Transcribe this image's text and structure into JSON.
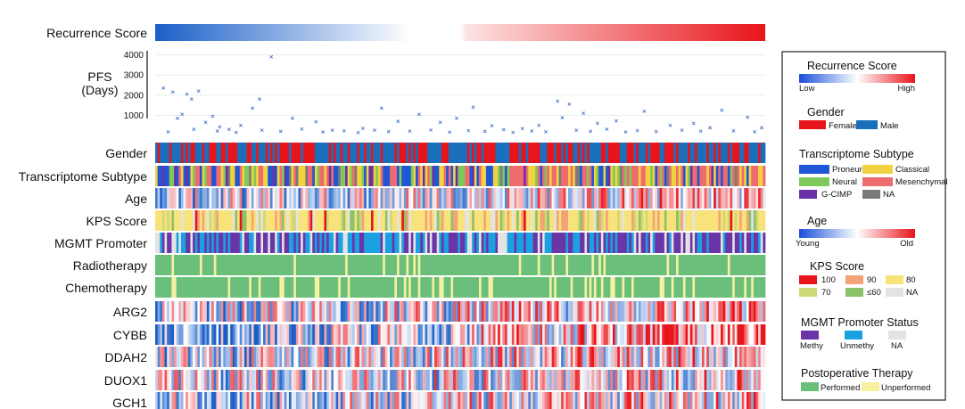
{
  "chart_data": {
    "type": "heatmap",
    "n_samples": 260,
    "top_bar_label": "Recurrence Score",
    "pfs": {
      "label": [
        "PFS",
        "(Days)"
      ],
      "yticks": [
        1000,
        2000,
        3000,
        4000
      ],
      "ylim": [
        0,
        4200
      ],
      "color": "#4a78c8",
      "points": [
        [
          3,
          2350
        ],
        [
          7,
          2150
        ],
        [
          9,
          850
        ],
        [
          11,
          1050
        ],
        [
          13,
          2050
        ],
        [
          15,
          1800
        ],
        [
          18,
          2200
        ],
        [
          21,
          650
        ],
        [
          24,
          950
        ],
        [
          27,
          420
        ],
        [
          31,
          300
        ],
        [
          36,
          500
        ],
        [
          41,
          1350
        ],
        [
          44,
          1800
        ],
        [
          49,
          3900
        ],
        [
          58,
          850
        ],
        [
          68,
          680
        ],
        [
          75,
          260
        ],
        [
          88,
          350
        ],
        [
          96,
          1350
        ],
        [
          103,
          700
        ],
        [
          112,
          1050
        ],
        [
          121,
          650
        ],
        [
          128,
          850
        ],
        [
          135,
          1400
        ],
        [
          143,
          480
        ],
        [
          156,
          340
        ],
        [
          163,
          500
        ],
        [
          171,
          1700
        ],
        [
          173,
          880
        ],
        [
          176,
          1550
        ],
        [
          182,
          1100
        ],
        [
          188,
          600
        ],
        [
          196,
          720
        ],
        [
          208,
          1200
        ],
        [
          219,
          500
        ],
        [
          229,
          600
        ],
        [
          236,
          380
        ],
        [
          241,
          1250
        ],
        [
          252,
          900
        ],
        [
          258,
          380
        ],
        [
          5,
          180
        ],
        [
          16,
          300
        ],
        [
          26,
          220
        ],
        [
          34,
          150
        ],
        [
          45,
          260
        ],
        [
          53,
          200
        ],
        [
          62,
          320
        ],
        [
          71,
          170
        ],
        [
          80,
          230
        ],
        [
          86,
          140
        ],
        [
          93,
          260
        ],
        [
          99,
          190
        ],
        [
          108,
          210
        ],
        [
          117,
          270
        ],
        [
          125,
          160
        ],
        [
          133,
          240
        ],
        [
          140,
          200
        ],
        [
          148,
          290
        ],
        [
          152,
          150
        ],
        [
          160,
          220
        ],
        [
          166,
          180
        ],
        [
          179,
          260
        ],
        [
          185,
          200
        ],
        [
          192,
          310
        ],
        [
          200,
          170
        ],
        [
          205,
          240
        ],
        [
          213,
          190
        ],
        [
          224,
          260
        ],
        [
          232,
          210
        ],
        [
          246,
          230
        ],
        [
          255,
          180
        ]
      ]
    },
    "rows": [
      {
        "label": "Gender",
        "kind": "gender"
      },
      {
        "label": "Transcriptome Subtype",
        "kind": "subtype"
      },
      {
        "label": "Age",
        "kind": "diverging"
      },
      {
        "label": "KPS Score",
        "kind": "kps"
      },
      {
        "label": "MGMT Promoter",
        "kind": "mgmt"
      },
      {
        "label": "Radiotherapy",
        "kind": "therapy",
        "rate": 0.05
      },
      {
        "label": "Chemotherapy",
        "kind": "therapy",
        "rate": 0.14
      },
      {
        "label": "ARG2",
        "kind": "expr",
        "trend": 0.6
      },
      {
        "label": "CYBB",
        "kind": "expr",
        "trend": 1.4
      },
      {
        "label": "DDAH2",
        "kind": "expr",
        "trend": 0.5
      },
      {
        "label": "DUOX1",
        "kind": "expr",
        "trend": 0.3
      },
      {
        "label": "GCH1",
        "kind": "expr",
        "trend": 0.5
      }
    ],
    "colors": {
      "female": "#e8141b",
      "male": "#1a6fbd",
      "proneural": "#1f56d6",
      "classical": "#f2d23f",
      "neural": "#7ec95a",
      "mesenchymal": "#ee6b6e",
      "gcimp": "#6a30a8",
      "na_subtype": "#7a7a7a",
      "kps100": "#e8141b",
      "kps90": "#f4a377",
      "kps80": "#f8e27a",
      "kps70": "#cfd876",
      "kps60": "#8cc26a",
      "kps_na": "#e3e3e3",
      "methy": "#6a35a6",
      "unmethy": "#1ba1e2",
      "mgmt_na": "#e3e3e3",
      "performed": "#6ac07a",
      "unperformed": "#f7f0a0",
      "low": "#1a5fc8",
      "mid": "#ffffff",
      "high": "#e8141b"
    },
    "legend": {
      "recurrence": {
        "title": "Recurrence Score",
        "low": "Low",
        "high": "High"
      },
      "gender": {
        "title": "Gender",
        "items": [
          "Female",
          "Male"
        ]
      },
      "subtype": {
        "title": "Transcriptome Subtype",
        "items": [
          "Proneural",
          "Classical",
          "Neural",
          "Mesenchymal",
          "G-CIMP",
          "NA"
        ]
      },
      "age": {
        "title": "Age",
        "low": "Young",
        "high": "Old"
      },
      "kps": {
        "title": "KPS Score",
        "items": [
          "100",
          "90",
          "80",
          "70",
          "≤60",
          "NA"
        ]
      },
      "mgmt": {
        "title": "MGMT Promoter Status",
        "items": [
          "Methy",
          "Unmethy",
          "NA"
        ]
      },
      "therapy": {
        "title": "Postoperative Therapy",
        "items": [
          "Performed",
          "Unperformed"
        ]
      }
    }
  }
}
